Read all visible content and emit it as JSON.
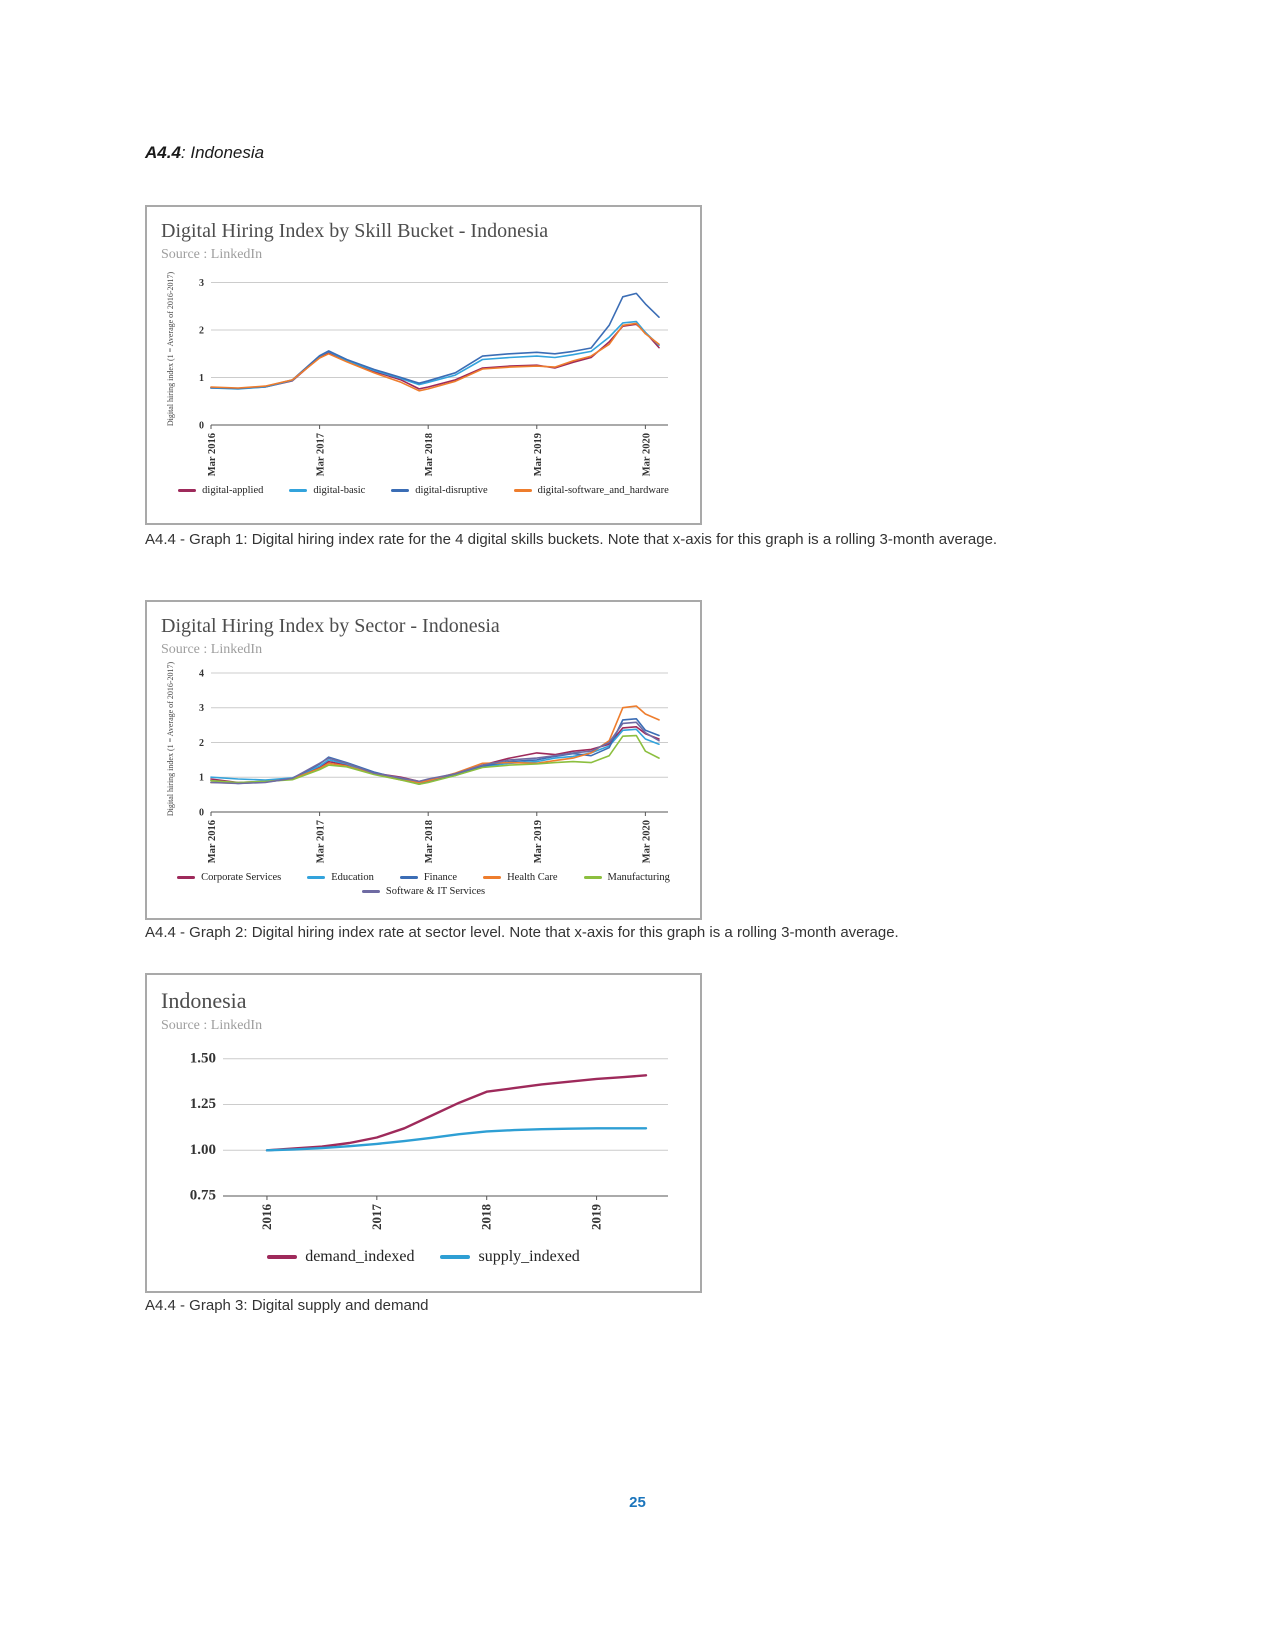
{
  "page": {
    "heading_bold": "A4.4",
    "heading_rest": ": Indonesia",
    "page_number": "25"
  },
  "captions": {
    "graph1": "A4.4 - Graph 1: Digital hiring index rate for the 4 digital skills buckets. Note that x-axis for this graph is a rolling 3-month average.",
    "graph2": "A4.4 - Graph 2: Digital hiring index rate at sector level. Note that x-axis for this graph is a rolling 3-month average.",
    "graph3": "A4.4 - Graph 3: Digital supply and demand"
  },
  "chart_data": [
    {
      "id": "skill_bucket",
      "type": "line",
      "title": "Digital Hiring Index by Skill Bucket - Indonesia",
      "source": "Source : LinkedIn",
      "ylabel": "Digital hiring index (1 = Average of 2016-2017)",
      "ylim": [
        0,
        3.2
      ],
      "yticks": [
        0,
        1,
        2,
        3
      ],
      "ytick_labels": [
        "0",
        "1",
        "2",
        "3"
      ],
      "xlim": [
        0,
        50.5
      ],
      "x_ticks": [
        0,
        12,
        24,
        36,
        48
      ],
      "x_tick_labels": [
        "Mar 2016",
        "Mar 2017",
        "Mar 2018",
        "Mar 2019",
        "Mar 2020"
      ],
      "x": [
        0,
        3,
        6,
        9,
        12,
        13,
        15,
        18,
        21,
        23,
        24,
        27,
        30,
        33,
        36,
        38,
        40,
        42,
        44,
        45.5,
        47,
        48,
        49.5
      ],
      "series": [
        {
          "name": "digital-applied",
          "color": "#9e2a5b",
          "values": [
            0.78,
            0.77,
            0.8,
            0.93,
            1.43,
            1.52,
            1.35,
            1.13,
            0.95,
            0.76,
            0.8,
            0.95,
            1.2,
            1.24,
            1.26,
            1.2,
            1.32,
            1.42,
            1.75,
            2.08,
            2.12,
            1.95,
            1.63
          ]
        },
        {
          "name": "digital-basic",
          "color": "#33a3dc",
          "values": [
            0.78,
            0.76,
            0.8,
            0.94,
            1.45,
            1.55,
            1.36,
            1.15,
            0.98,
            0.85,
            0.9,
            1.05,
            1.38,
            1.42,
            1.45,
            1.42,
            1.48,
            1.55,
            1.85,
            2.15,
            2.18,
            1.95,
            1.68
          ]
        },
        {
          "name": "digital-disruptive",
          "color": "#3b6db5",
          "values": [
            0.79,
            0.77,
            0.81,
            0.95,
            1.46,
            1.56,
            1.38,
            1.17,
            1.0,
            0.88,
            0.93,
            1.1,
            1.45,
            1.5,
            1.53,
            1.5,
            1.55,
            1.62,
            2.1,
            2.7,
            2.77,
            2.55,
            2.27
          ]
        },
        {
          "name": "digital-software_and_hardware",
          "color": "#ee7d2d",
          "values": [
            0.8,
            0.78,
            0.82,
            0.95,
            1.41,
            1.5,
            1.33,
            1.1,
            0.9,
            0.72,
            0.76,
            0.92,
            1.18,
            1.22,
            1.24,
            1.22,
            1.35,
            1.45,
            1.7,
            2.1,
            2.14,
            1.92,
            1.7
          ]
        }
      ],
      "legend_rows": [
        [
          0,
          1,
          2,
          3
        ]
      ],
      "grid": true,
      "legend_position": "bottom"
    },
    {
      "id": "sector",
      "type": "line",
      "title": "Digital Hiring Index by Sector - Indonesia",
      "source": "Source : LinkedIn",
      "ylabel": "Digital hiring index (1 = Average of 2016-2017)",
      "ylim": [
        0,
        4.2
      ],
      "yticks": [
        0,
        1,
        2,
        3,
        4
      ],
      "ytick_labels": [
        "0",
        "1",
        "2",
        "3",
        "4"
      ],
      "xlim": [
        0,
        50.5
      ],
      "x_ticks": [
        0,
        12,
        24,
        36,
        48
      ],
      "x_tick_labels": [
        "Mar 2016",
        "Mar 2017",
        "Mar 2018",
        "Mar 2019",
        "Mar 2020"
      ],
      "x": [
        0,
        3,
        6,
        9,
        12,
        13,
        15,
        18,
        21,
        23,
        24,
        27,
        30,
        33,
        36,
        38,
        40,
        42,
        44,
        45.5,
        47,
        48,
        49.5
      ],
      "series": [
        {
          "name": "Corporate Services",
          "color": "#9e2a5b",
          "values": [
            0.95,
            0.85,
            0.88,
            0.95,
            1.28,
            1.45,
            1.35,
            1.12,
            1.0,
            0.88,
            0.92,
            1.1,
            1.35,
            1.55,
            1.7,
            1.65,
            1.75,
            1.8,
            1.95,
            2.42,
            2.45,
            2.25,
            2.1
          ]
        },
        {
          "name": "Education",
          "color": "#33a3dc",
          "values": [
            1.0,
            0.95,
            0.92,
            0.98,
            1.32,
            1.5,
            1.38,
            1.1,
            0.95,
            0.85,
            0.9,
            1.05,
            1.3,
            1.4,
            1.45,
            1.55,
            1.6,
            1.7,
            1.9,
            2.35,
            2.38,
            2.1,
            1.95
          ]
        },
        {
          "name": "Finance",
          "color": "#3b6db5",
          "values": [
            0.9,
            0.82,
            0.86,
            0.96,
            1.38,
            1.58,
            1.42,
            1.15,
            0.95,
            0.8,
            0.88,
            1.08,
            1.32,
            1.45,
            1.5,
            1.6,
            1.68,
            1.62,
            1.85,
            2.65,
            2.68,
            2.35,
            2.2
          ]
        },
        {
          "name": "Health Care",
          "color": "#ee7d2d",
          "values": [
            0.85,
            0.83,
            0.87,
            0.95,
            1.25,
            1.4,
            1.32,
            1.1,
            0.92,
            0.85,
            0.9,
            1.12,
            1.4,
            1.42,
            1.4,
            1.48,
            1.55,
            1.7,
            2.05,
            3.0,
            3.05,
            2.82,
            2.65
          ]
        },
        {
          "name": "Manufacturing",
          "color": "#8cbf3f",
          "values": [
            0.9,
            0.85,
            0.88,
            0.93,
            1.22,
            1.35,
            1.3,
            1.08,
            0.92,
            0.8,
            0.85,
            1.05,
            1.28,
            1.35,
            1.38,
            1.42,
            1.45,
            1.42,
            1.62,
            2.18,
            2.2,
            1.75,
            1.55
          ]
        },
        {
          "name": "Software & IT Services",
          "color": "#6f6ba3",
          "values": [
            0.85,
            0.82,
            0.85,
            0.97,
            1.4,
            1.55,
            1.4,
            1.12,
            0.98,
            0.88,
            0.95,
            1.1,
            1.35,
            1.5,
            1.55,
            1.62,
            1.7,
            1.75,
            2.0,
            2.55,
            2.58,
            2.28,
            2.05
          ]
        }
      ],
      "legend_rows": [
        [
          0,
          1,
          2,
          3,
          4
        ],
        [
          5
        ]
      ],
      "grid": true,
      "legend_position": "bottom"
    },
    {
      "id": "supply_demand",
      "type": "line",
      "title": "Indonesia",
      "source": "Source : LinkedIn",
      "ylabel": "",
      "ylim": [
        0.75,
        1.57
      ],
      "yticks": [
        0.75,
        1.0,
        1.25,
        1.5
      ],
      "ytick_labels": [
        "0.75",
        "1.00",
        "1.25",
        "1.50"
      ],
      "xlim": [
        2015.6,
        2019.65
      ],
      "x_ticks": [
        2016,
        2017,
        2018,
        2019
      ],
      "x_tick_labels": [
        "2016",
        "2017",
        "2018",
        "2019"
      ],
      "x": [
        2016,
        2016.25,
        2016.5,
        2016.75,
        2017,
        2017.25,
        2017.5,
        2017.75,
        2018,
        2018.25,
        2018.5,
        2018.75,
        2019,
        2019.25,
        2019.45
      ],
      "series": [
        {
          "name": "demand_indexed",
          "color": "#9e2a5b",
          "values": [
            1.0,
            1.01,
            1.02,
            1.04,
            1.07,
            1.12,
            1.19,
            1.26,
            1.32,
            1.34,
            1.36,
            1.375,
            1.39,
            1.4,
            1.41
          ]
        },
        {
          "name": "supply_indexed",
          "color": "#2e9fd4",
          "values": [
            1.0,
            1.005,
            1.012,
            1.022,
            1.035,
            1.05,
            1.068,
            1.088,
            1.103,
            1.11,
            1.115,
            1.118,
            1.12,
            1.12,
            1.12
          ]
        }
      ],
      "legend_rows": [
        [
          0,
          1
        ]
      ],
      "grid": true,
      "legend_position": "bottom"
    }
  ]
}
